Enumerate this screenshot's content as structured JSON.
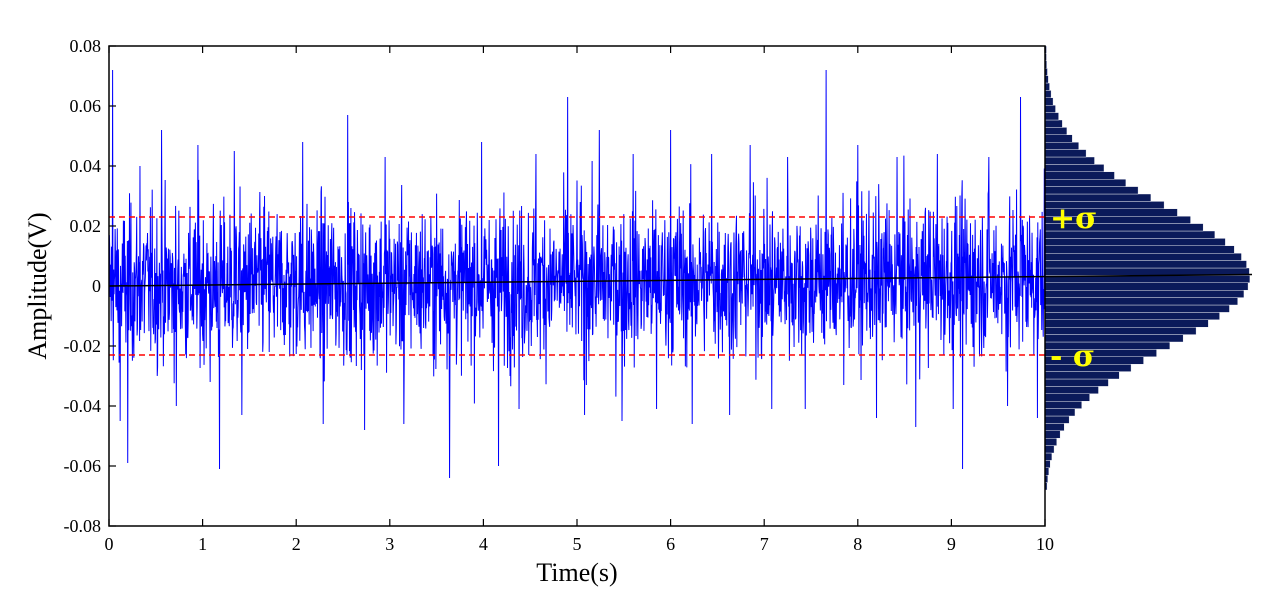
{
  "chart_data": {
    "type": "line",
    "xlabel": "Time(s)",
    "ylabel": "Amplitude(V)",
    "xlim": [
      0,
      10
    ],
    "ylim": [
      -0.08,
      0.08
    ],
    "x_ticks": [
      "0",
      "1",
      "2",
      "3",
      "4",
      "5",
      "6",
      "7",
      "8",
      "9",
      "10"
    ],
    "y_ticks": [
      "0.08",
      "0.06",
      "0.04",
      "0.02",
      "0",
      "-0.02",
      "-0.04",
      "-0.06",
      "-0.08"
    ],
    "grid": false,
    "signal_color": "#0000ff",
    "series": [
      {
        "x": [
          0,
          0.04,
          0.12,
          0.2,
          0.33,
          0.56,
          0.72,
          0.95,
          1.08,
          1.18,
          1.34,
          1.42,
          1.66,
          2.07,
          2.29,
          2.55,
          2.73,
          2.95,
          3.15,
          3.64,
          3.98,
          4.16,
          4.38,
          4.56,
          4.9,
          5.08,
          5.24,
          5.48,
          5.6,
          5.85,
          6.0,
          6.23,
          6.44,
          6.63,
          6.85,
          7.08,
          7.25,
          7.44,
          7.66,
          7.85,
          8.0,
          8.2,
          8.42,
          8.62,
          8.85,
          9.02,
          9.12,
          9.4,
          9.6,
          9.74,
          9.92,
          10
        ],
        "y": [
          0.01,
          0.072,
          -0.045,
          -0.059,
          0.04,
          0.052,
          -0.04,
          0.047,
          -0.032,
          -0.061,
          0.045,
          -0.043,
          0.03,
          0.048,
          -0.046,
          0.057,
          -0.048,
          0.043,
          -0.046,
          -0.064,
          0.048,
          -0.06,
          -0.041,
          0.044,
          0.063,
          -0.043,
          0.052,
          -0.045,
          0.044,
          -0.041,
          0.052,
          -0.046,
          0.044,
          -0.043,
          0.047,
          -0.041,
          0.043,
          -0.041,
          0.072,
          -0.033,
          0.047,
          -0.044,
          0.043,
          -0.047,
          0.044,
          -0.041,
          -0.061,
          0.043,
          -0.04,
          0.063,
          -0.044,
          0.02
        ]
      }
    ],
    "trend_line": {
      "x": [
        0,
        10
      ],
      "y": [
        0.0,
        0.0035
      ],
      "color": "#000000"
    },
    "reference_lines": [
      {
        "label": "+σ",
        "y": 0.023,
        "color": "#ff0000",
        "style": "dashed"
      },
      {
        "label": "- σ",
        "y": -0.023,
        "color": "#ff0000",
        "style": "dashed"
      }
    ],
    "histogram": {
      "orientation": "horizontal",
      "color": "#0b1a5a",
      "mean": 0.003,
      "std": 0.023,
      "peak_height": 0.31,
      "y_range": [
        -0.068,
        0.08
      ]
    }
  }
}
